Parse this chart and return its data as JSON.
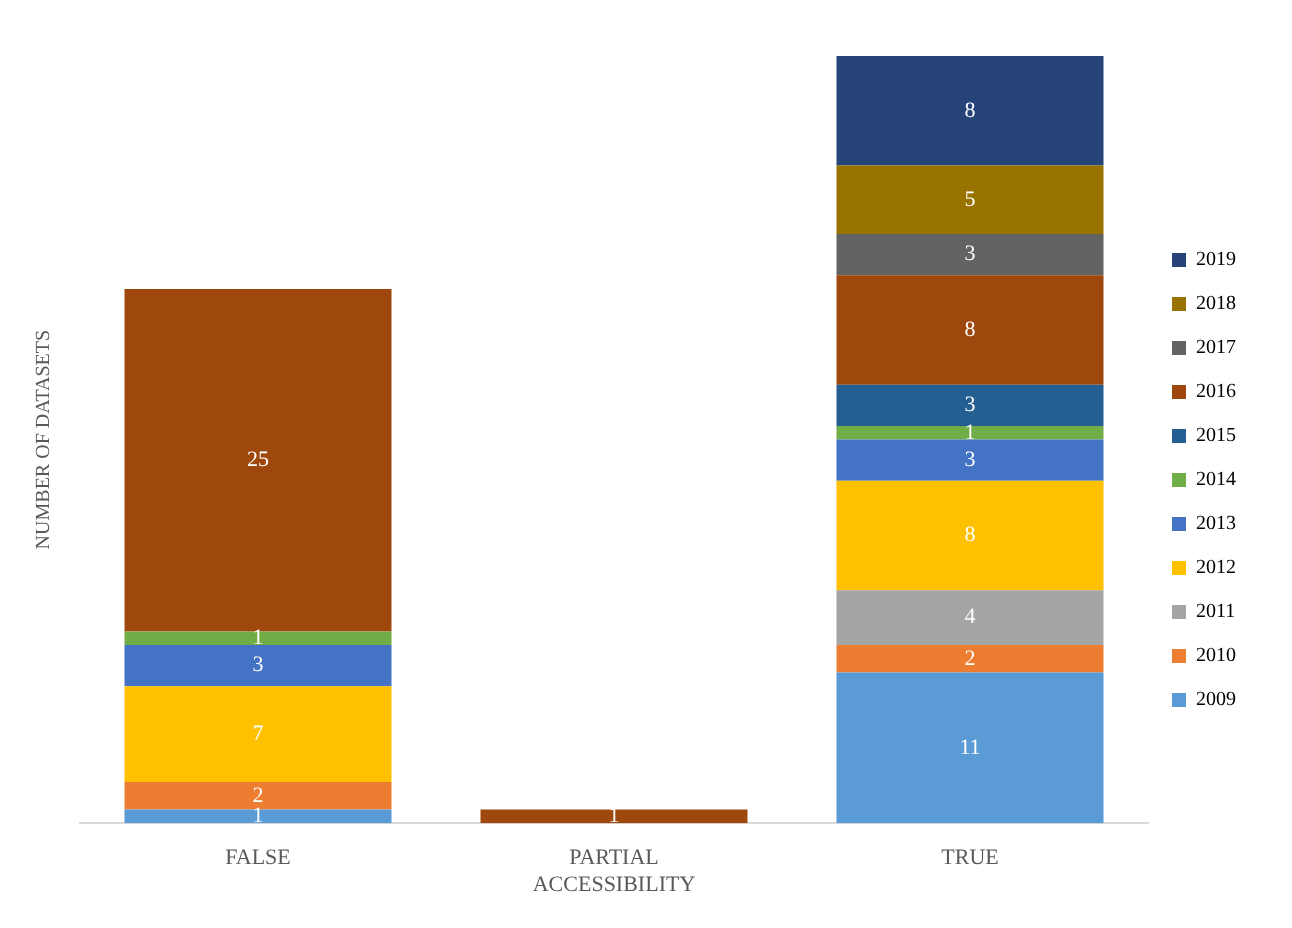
{
  "chart_data": {
    "type": "bar",
    "ylabel": "NUMBER OF DATASETS",
    "categories": [
      "FALSE",
      "PARTIAL ACCESSIBILITY",
      "TRUE"
    ],
    "stacked": true,
    "data_labels": true,
    "legend": "right",
    "grid": false,
    "series": [
      {
        "name": "2009",
        "color": "#5b9bd5",
        "values": [
          1,
          null,
          11
        ]
      },
      {
        "name": "2010",
        "color": "#ed7d31",
        "values": [
          2,
          null,
          2
        ]
      },
      {
        "name": "2011",
        "color": "#a5a5a5",
        "values": [
          null,
          null,
          4
        ]
      },
      {
        "name": "2012",
        "color": "#ffc000",
        "values": [
          7,
          null,
          8
        ]
      },
      {
        "name": "2013",
        "color": "#4472c4",
        "values": [
          3,
          null,
          3
        ]
      },
      {
        "name": "2014",
        "color": "#70ad47",
        "values": [
          1,
          null,
          1
        ]
      },
      {
        "name": "2015",
        "color": "#255e91",
        "values": [
          null,
          null,
          3
        ]
      },
      {
        "name": "2016",
        "color": "#9e480e",
        "values": [
          25,
          1,
          8
        ]
      },
      {
        "name": "2017",
        "color": "#636363",
        "values": [
          null,
          null,
          3
        ]
      },
      {
        "name": "2018",
        "color": "#997300",
        "values": [
          null,
          null,
          5
        ]
      },
      {
        "name": "2019",
        "color": "#264478",
        "values": [
          null,
          null,
          8
        ]
      }
    ]
  }
}
